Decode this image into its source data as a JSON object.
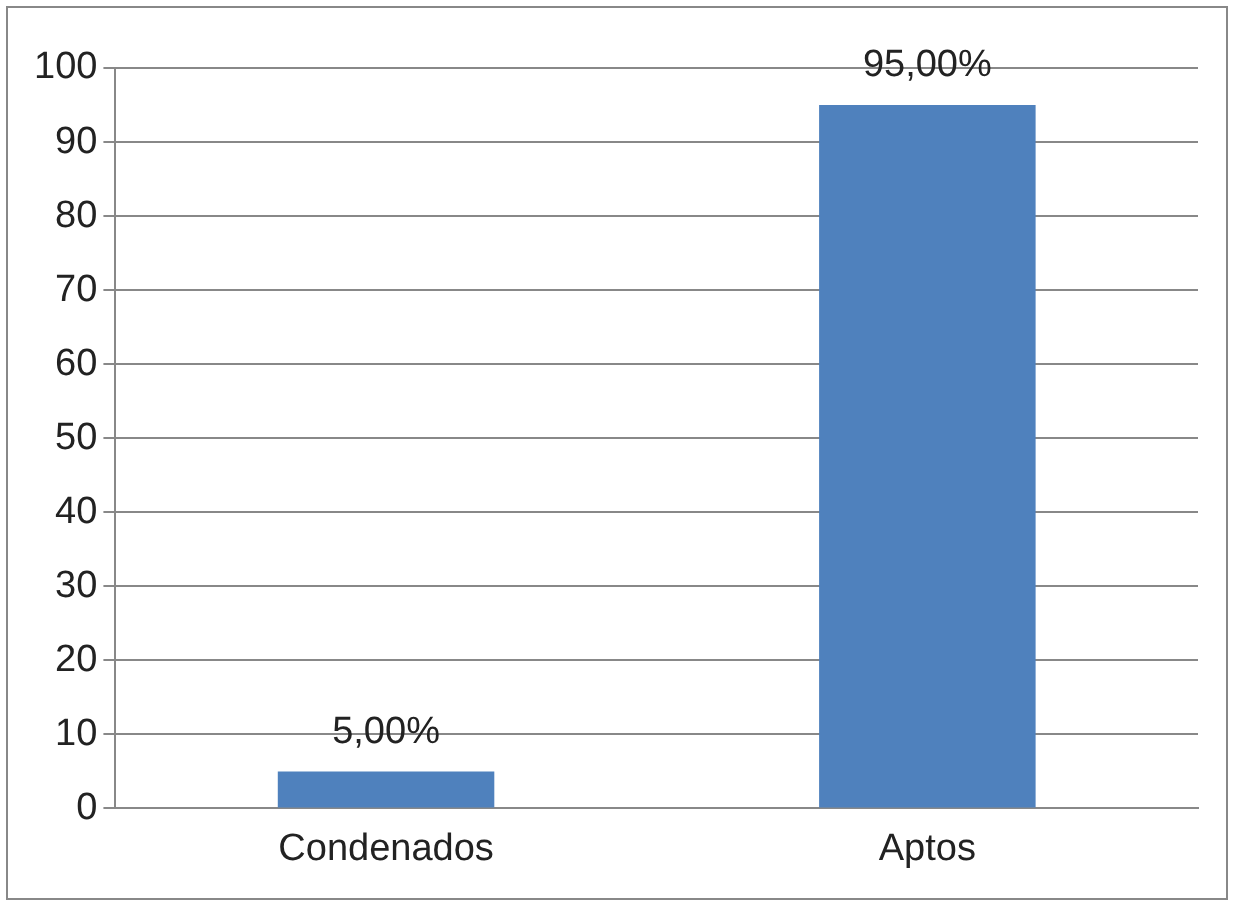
{
  "chart_data": {
    "type": "bar",
    "categories": [
      "Condenados",
      "Aptos"
    ],
    "series": [
      {
        "color": "#4f81bd",
        "values": [
          5,
          95
        ],
        "value_labels": [
          "5,00%",
          "95,00%"
        ]
      }
    ],
    "ylim": [
      0,
      100
    ],
    "yticks": [
      0,
      10,
      20,
      30,
      40,
      50,
      60,
      70,
      80,
      90,
      100
    ],
    "grid": "y",
    "legend": false
  }
}
